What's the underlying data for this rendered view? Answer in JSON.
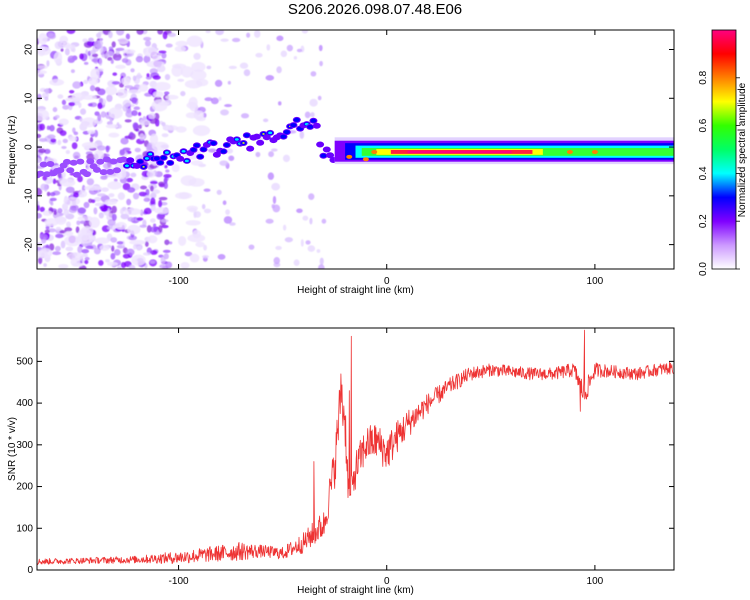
{
  "title": "S206.2026.098.07.48.E06",
  "chart_data": [
    {
      "type": "heatmap",
      "title": "S206.2026.098.07.48.E06",
      "xlabel": "Height of straight line (km)",
      "ylabel": "Frequency (Hz)",
      "xlim": [
        -168,
        138
      ],
      "ylim": [
        -25,
        24
      ],
      "x_ticks": [
        -100,
        0,
        100
      ],
      "x_tick_labels": [
        "-100",
        "0",
        "100"
      ],
      "y_ticks": [
        -20,
        -10,
        0,
        10,
        20
      ],
      "y_tick_labels": [
        "-20",
        "-10",
        "0",
        "10",
        "20"
      ],
      "colorbar": {
        "label": "Normalized spectral amplitude",
        "range": [
          0,
          1
        ],
        "ticks": [
          0.0,
          0.2,
          0.4,
          0.6,
          0.8
        ],
        "tick_labels": [
          "0.0",
          "0.2",
          "0.4",
          "0.6",
          "0.8"
        ],
        "colormap": [
          "#ffffff",
          "#cc99ff",
          "#7f00ff",
          "#0000ff",
          "#00ffff",
          "#00ff66",
          "#33ff00",
          "#ffff00",
          "#ff8000",
          "#ff0000",
          "#ff0080"
        ]
      },
      "trace": {
        "description": "main echo frequency track",
        "points": [
          [
            -168,
            -5
          ],
          [
            -140,
            -4
          ],
          [
            -120,
            -3
          ],
          [
            -100,
            -2
          ],
          [
            -80,
            0
          ],
          [
            -60,
            1.5
          ],
          [
            -45,
            4
          ],
          [
            -35,
            6
          ],
          [
            -30,
            -1
          ],
          [
            -20,
            -2
          ],
          [
            -10,
            -1.5
          ],
          [
            0,
            -1
          ],
          [
            50,
            -1
          ],
          [
            100,
            -1
          ],
          [
            138,
            -1
          ]
        ]
      }
    },
    {
      "type": "line",
      "title": "",
      "xlabel": "Height of straight line (km)",
      "ylabel": "SNR (10 * v/v)",
      "xlim": [
        -168,
        138
      ],
      "ylim": [
        0,
        580
      ],
      "x_ticks": [
        -100,
        0,
        100
      ],
      "x_tick_labels": [
        "-100",
        "0",
        "100"
      ],
      "y_ticks": [
        0,
        100,
        200,
        300,
        400,
        500
      ],
      "y_tick_labels": [
        "0",
        "100",
        "200",
        "300",
        "400",
        "500"
      ],
      "line_color": "#ee3333",
      "series": [
        {
          "name": "SNR",
          "x": [
            -168,
            -150,
            -120,
            -100,
            -80,
            -70,
            -60,
            -50,
            -40,
            -30,
            -25,
            -22,
            -20,
            -18,
            -15,
            -10,
            -5,
            0,
            5,
            10,
            20,
            30,
            40,
            50,
            60,
            70,
            80,
            90,
            95,
            100,
            110,
            120,
            130,
            138
          ],
          "y": [
            20,
            22,
            25,
            30,
            40,
            45,
            45,
            40,
            65,
            110,
            250,
            420,
            360,
            150,
            240,
            300,
            310,
            280,
            320,
            350,
            400,
            440,
            470,
            480,
            475,
            470,
            470,
            480,
            420,
            480,
            475,
            470,
            480,
            485
          ],
          "amplitude": [
            15,
            14,
            18,
            30,
            40,
            45,
            30,
            30,
            50,
            70,
            110,
            140,
            130,
            80,
            90,
            90,
            90,
            90,
            80,
            70,
            50,
            40,
            35,
            30,
            30,
            30,
            30,
            35,
            60,
            35,
            30,
            30,
            30,
            30
          ],
          "spikes": [
            [
              -17,
              560
            ],
            [
              -18,
              430
            ],
            [
              -22,
              470
            ],
            [
              95,
              575
            ],
            [
              93,
              380
            ],
            [
              -35,
              260
            ]
          ]
        }
      ]
    }
  ]
}
